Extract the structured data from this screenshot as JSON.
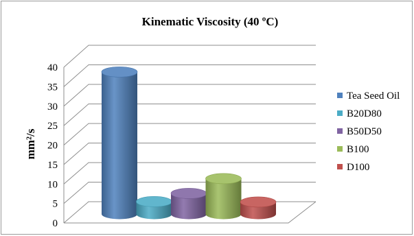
{
  "chart_data": {
    "type": "bar",
    "title": "Kinematic Viscosity (40 ºC)",
    "ylabel": "mm²/s",
    "xlabel": "",
    "ylim": [
      0,
      40
    ],
    "yticks": [
      0,
      5,
      10,
      15,
      20,
      25,
      30,
      35,
      40
    ],
    "grid": true,
    "legend_position": "right",
    "style": "3d-cylinder",
    "categories": [
      "Tea Seed Oil",
      "B20D80",
      "B50D50",
      "B100",
      "D100"
    ],
    "values": [
      36.5,
      3.2,
      5.3,
      9.1,
      3.1
    ],
    "colors": [
      "#4f81bd",
      "#4bacc6",
      "#8064a2",
      "#9bbb59",
      "#c0504d"
    ]
  }
}
